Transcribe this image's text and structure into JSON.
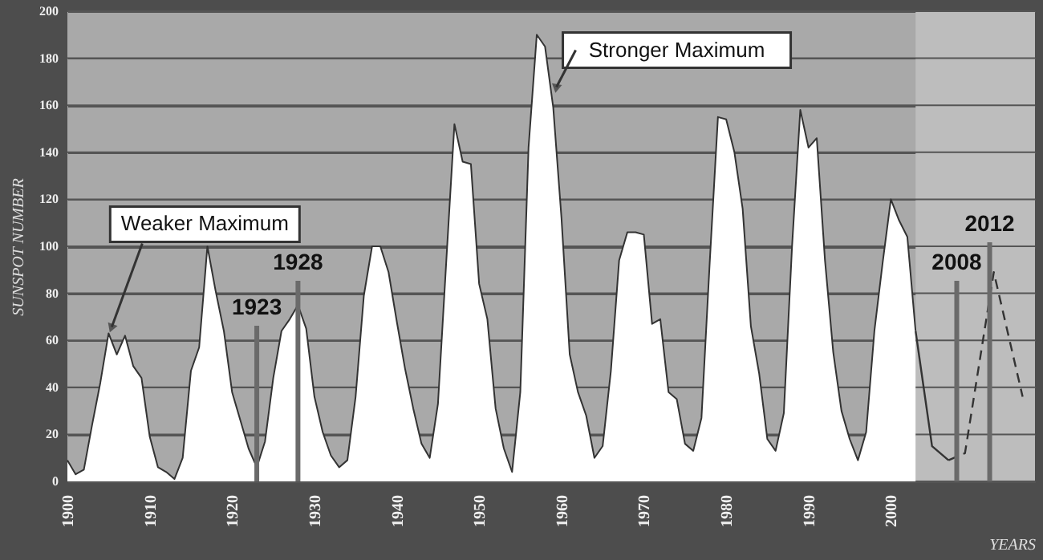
{
  "chart_data": {
    "type": "area",
    "xlabel": "YEARS",
    "ylabel": "SUNSPOT NUMBER",
    "xlim": [
      1900,
      2017.5
    ],
    "ylim": [
      0,
      200
    ],
    "xticks": [
      1900,
      1910,
      1920,
      1930,
      1940,
      1950,
      1960,
      1970,
      1980,
      1990,
      2000
    ],
    "yticks": [
      0,
      20,
      40,
      60,
      80,
      100,
      120,
      140,
      160,
      180,
      200
    ],
    "grid": "y",
    "marker": "none",
    "bands": [
      {
        "axis": "x",
        "from": 2003,
        "to": 2017.5,
        "color": "#bdbdbd"
      }
    ],
    "annotations": [
      {
        "text": "Weaker Maximum",
        "x": 1905,
        "y": 63
      },
      {
        "text": "Stronger Maximum",
        "x": 1959,
        "y": 165
      }
    ],
    "ref_lines": [
      {
        "axis": "x",
        "value": 1923,
        "label": "1923",
        "color": "#6a6a6a"
      },
      {
        "axis": "x",
        "value": 1928,
        "label": "1928",
        "color": "#6a6a6a"
      },
      {
        "axis": "x",
        "value": 2008,
        "label": "2008",
        "color": "#6a6a6a"
      },
      {
        "axis": "x",
        "value": 2012,
        "label": "2012",
        "color": "#6a6a6a"
      }
    ],
    "series": [
      {
        "color": "#ffffff",
        "x": [
          1900,
          1901,
          1902,
          1903,
          1904,
          1905,
          1906,
          1907,
          1908,
          1909,
          1910,
          1911,
          1912,
          1913,
          1914,
          1915,
          1916,
          1917,
          1918,
          1919,
          1920,
          1921,
          1922,
          1923,
          1924,
          1925,
          1926,
          1927,
          1928,
          1929,
          1930,
          1931,
          1932,
          1933,
          1934,
          1935,
          1936,
          1937,
          1938,
          1939,
          1940,
          1941,
          1942,
          1943,
          1944,
          1945,
          1946,
          1947,
          1948,
          1949,
          1950,
          1951,
          1952,
          1953,
          1954,
          1955,
          1956,
          1957,
          1958,
          1959,
          1960,
          1961,
          1962,
          1963,
          1964,
          1965,
          1966,
          1967,
          1968,
          1969,
          1970,
          1971,
          1972,
          1973,
          1974,
          1975,
          1976,
          1977,
          1978,
          1979,
          1980,
          1981,
          1982,
          1983,
          1984,
          1985,
          1986,
          1987,
          1988,
          1989,
          1990,
          1991,
          1992,
          1993,
          1994,
          1995,
          1996,
          1997,
          1998,
          1999,
          2000,
          2001,
          2002,
          2003
        ],
        "values": [
          9,
          3,
          5,
          24,
          42,
          63,
          54,
          62,
          49,
          44,
          19,
          6,
          4,
          1,
          10,
          47,
          57,
          100,
          81,
          64,
          38,
          26,
          14,
          6,
          17,
          44,
          64,
          69,
          75,
          65,
          36,
          21,
          11,
          6,
          9,
          36,
          79,
          100,
          100,
          89,
          68,
          48,
          31,
          16,
          10,
          33,
          93,
          152,
          136,
          135,
          84,
          69,
          31,
          14,
          4,
          38,
          142,
          190,
          185,
          159,
          112,
          54,
          38,
          28,
          10,
          15,
          47,
          94,
          106,
          106,
          105,
          67,
          69,
          38,
          35,
          16,
          13,
          27,
          93,
          155,
          154,
          140,
          116,
          66,
          46,
          18,
          13,
          29,
          100,
          158,
          142,
          146,
          94,
          55,
          30,
          18,
          9,
          21,
          64,
          93,
          120,
          111,
          104,
          64
        ]
      },
      {
        "type": "line",
        "color": "#333333",
        "line_style": "solid",
        "x": [
          2003,
          2005,
          2007
        ],
        "values": [
          64,
          15,
          9
        ]
      },
      {
        "type": "line",
        "color": "#333333",
        "line_style": "dashed",
        "x": [
          2007,
          2009,
          2012.5,
          2016
        ],
        "values": [
          9,
          12,
          89,
          36
        ]
      }
    ]
  }
}
